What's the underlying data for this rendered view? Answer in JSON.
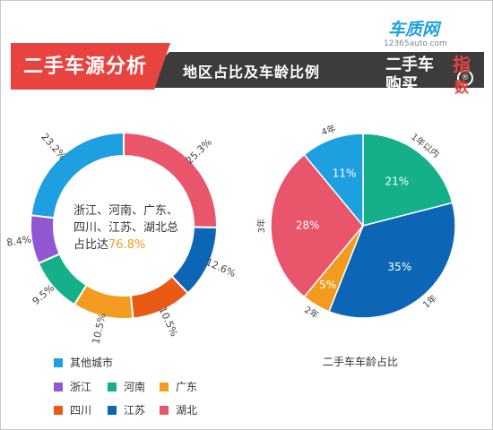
{
  "header": {
    "main_title": "二手车源分析",
    "sub_title": "地区占比及车龄比例"
  },
  "logo": {
    "brand": "车质网",
    "url": "12365auto.com",
    "line1": "二手车",
    "line2": "购买",
    "badge": "®",
    "accent1": "指",
    "accent2": "数"
  },
  "colors": {
    "blue_light": "#1e9fe0",
    "teal": "#13b08a",
    "orange_yellow": "#f39b1e",
    "orange": "#ea5a15",
    "dark_blue": "#0c65b5",
    "red_pink": "#e9566b",
    "purple": "#9156d1",
    "title_red": "#e8443f"
  },
  "chart_data": [
    {
      "type": "donut",
      "center_text_main": "浙江、河南、广东、四川、江苏、湖北总占比达",
      "center_text_value": "76.8%",
      "series": [
        {
          "name": "湖北",
          "value": 25.3,
          "label": "25.3%",
          "color": "#e9566b"
        },
        {
          "name": "江苏",
          "value": 12.6,
          "label": "12.6%",
          "color": "#0c65b5"
        },
        {
          "name": "四川",
          "value": 10.5,
          "label": "10.5%",
          "color": "#ea5a15"
        },
        {
          "name": "广东",
          "value": 10.5,
          "label": "10.5%",
          "color": "#f39b1e"
        },
        {
          "name": "河南",
          "value": 9.5,
          "label": "9.5%",
          "color": "#13b08a"
        },
        {
          "name": "浙江",
          "value": 8.4,
          "label": "8.4%",
          "color": "#9156d1"
        },
        {
          "name": "其他城市",
          "value": 23.2,
          "label": "23.2%",
          "color": "#1e9fe0"
        }
      ],
      "legend": [
        {
          "name": "其他城市",
          "color": "#1e9fe0"
        },
        {
          "name": "浙江",
          "color": "#9156d1"
        },
        {
          "name": "河南",
          "color": "#13b08a"
        },
        {
          "name": "广东",
          "color": "#f39b1e"
        },
        {
          "name": "四川",
          "color": "#ea5a15"
        },
        {
          "name": "江苏",
          "color": "#0c65b5"
        },
        {
          "name": "湖北",
          "color": "#e9566b"
        }
      ]
    },
    {
      "type": "pie",
      "title": "二手车车龄占比",
      "series": [
        {
          "name": "1年以内",
          "value": 21,
          "label": "21%",
          "color": "#13b08a"
        },
        {
          "name": "1年",
          "value": 35,
          "label": "35%",
          "color": "#0c65b5"
        },
        {
          "name": "2年",
          "value": 5,
          "label": "5%",
          "color": "#f39b1e"
        },
        {
          "name": "3年",
          "value": 28,
          "label": "28%",
          "color": "#e9566b"
        },
        {
          "name": "4年",
          "value": 11,
          "label": "11%",
          "color": "#1e9fe0"
        }
      ]
    }
  ]
}
